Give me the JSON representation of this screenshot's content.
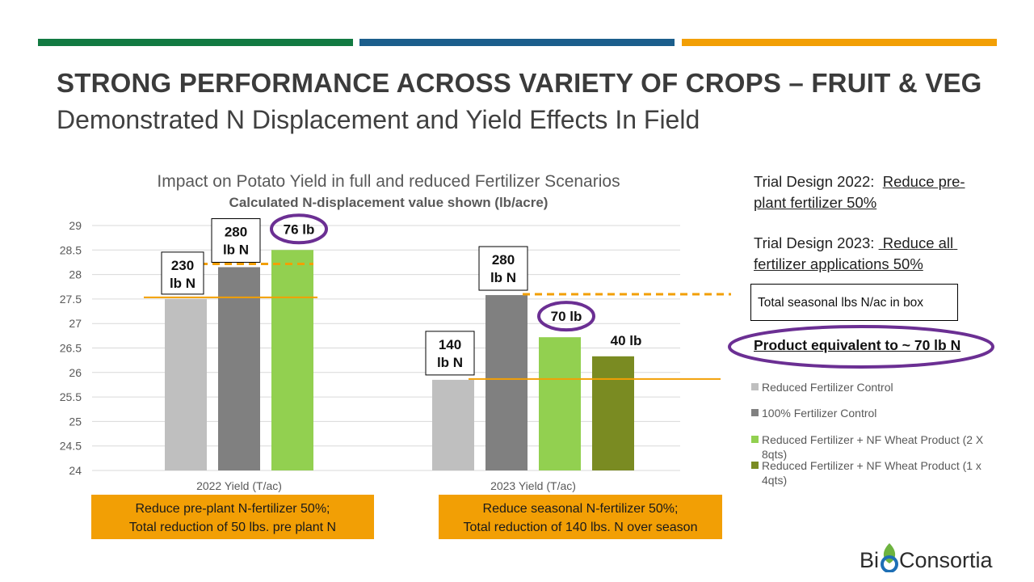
{
  "header": {
    "title": "STRONG PERFORMANCE ACROSS VARIETY OF CROPS – FRUIT & VEG",
    "subtitle": "Demonstrated N Displacement and Yield Effects In Field",
    "bar_colors": [
      "#127a42",
      "#1b5e8c",
      "#f29f05"
    ]
  },
  "chart_data": {
    "type": "bar",
    "title": "Impact on Potato Yield in full and reduced Fertilizer Scenarios",
    "subtitle": "Calculated N-displacement value shown (lb/acre)",
    "categories": [
      "2022 Yield (T/ac)",
      "2023 Yield (T/ac)"
    ],
    "ylim": [
      24,
      29
    ],
    "yticks": [
      "24",
      "24.5",
      "25",
      "25.5",
      "26",
      "26.5",
      "27",
      "27.5",
      "28",
      "28.5",
      "29"
    ],
    "grid": true,
    "series": [
      {
        "name": "Reduced Fertilizer Control",
        "color": "#bfbfbf",
        "values": [
          27.5,
          25.85
        ]
      },
      {
        "name": "100% Fertilizer Control",
        "color": "#808080",
        "values": [
          28.15,
          27.58
        ]
      },
      {
        "name": "Reduced Fertilizer + NF Wheat Product (2 X 8qts)",
        "color": "#92d050",
        "values": [
          28.5,
          26.72
        ]
      },
      {
        "name": "Reduced Fertilizer + NF Wheat Product (1 x 4qts)",
        "color": "#7a8b22",
        "values": [
          null,
          26.33
        ]
      }
    ],
    "box_labels": [
      {
        "line1": "230",
        "line2": "lb N"
      },
      {
        "line1": "280",
        "line2": "lb N"
      },
      {
        "line1": "140",
        "line2": "lb N"
      },
      {
        "line1": "280",
        "line2": "lb N"
      }
    ],
    "circle_labels": [
      "76 lb",
      "70 lb"
    ],
    "plain_label": "40 lb",
    "line_color": "#f29f05",
    "circle_color": "#6b2f93"
  },
  "notes": {
    "trial_2022_prefix": "Trial Design 2022:  ",
    "trial_2022_underlined": "Reduce pre-plant fertilizer 50%",
    "trial_2023_prefix": "Trial Design 2023: ",
    "trial_2023_underlined": " Reduce all fertilizer applications 50%",
    "box_note": "Total seasonal lbs N/ac in box",
    "product_note": "Product equivalent to ~ 70 lb N"
  },
  "orange_boxes": [
    {
      "line1": "Reduce pre-plant N-fertilizer 50%;",
      "line2": "Total reduction of 50 lbs. pre plant N"
    },
    {
      "line1": "Reduce seasonal N-fertilizer 50%;",
      "line2": "Total reduction of 140 lbs. N over season"
    }
  ],
  "logo": {
    "text_left": "Bi",
    "text_right": "Consortia"
  }
}
